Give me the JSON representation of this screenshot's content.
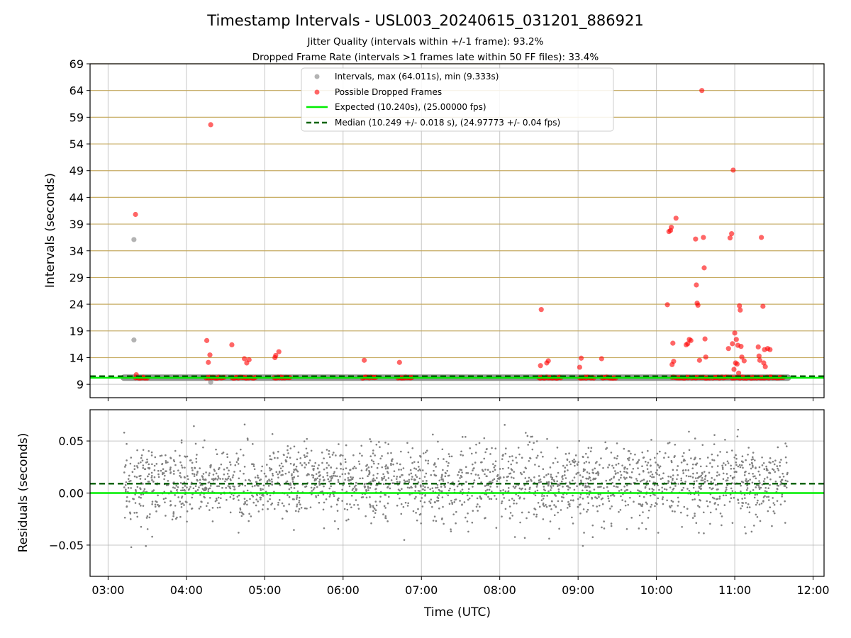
{
  "title": "Timestamp Intervals - USL003_20240615_031201_886921",
  "subtitle_1": "Jitter Quality (intervals within +/-1 frame): 93.2%",
  "subtitle_2": "Dropped Frame Rate (intervals >1 frames late within 50 FF files): 33.4%",
  "colors": {
    "interval": "#808080",
    "dropped": "#ff0000",
    "expected": "#00ee00",
    "median": "#006400",
    "hline": "#c8a64b",
    "grid": "#b0b0b0"
  },
  "chart_data": [
    {
      "type": "scatter",
      "name": "intervals",
      "ylabel": "Intervals (seconds)",
      "y_ticks": [
        "9",
        "14",
        "19",
        "24",
        "29",
        "34",
        "39",
        "44",
        "49",
        "54",
        "59",
        "64",
        "69"
      ],
      "ylim": [
        6.5,
        69
      ],
      "x_ticks": [
        "03:00",
        "04:00",
        "05:00",
        "06:00",
        "07:00",
        "08:00",
        "09:00",
        "10:00",
        "11:00",
        "12:00"
      ],
      "xlim_hours": [
        2.77,
        12.14
      ],
      "grid": true,
      "legend_position": "top-center",
      "series": [
        {
          "name": "Intervals, max (64.011s), min (9.333s)",
          "style": "scatter",
          "points": [
            [
              3.33,
              36.1
            ],
            [
              3.33,
              17.3
            ],
            [
              4.31,
              9.4
            ]
          ],
          "band": {
            "x_start": 3.2,
            "x_end": 11.68,
            "y": 10.25
          }
        },
        {
          "name": "Possible Dropped Frames",
          "style": "scatter",
          "clusters": [
            [
              3.35,
              3.5
            ],
            [
              4.25,
              4.48
            ],
            [
              4.58,
              4.88
            ],
            [
              5.12,
              5.32
            ],
            [
              6.25,
              6.42
            ],
            [
              6.7,
              6.88
            ],
            [
              8.5,
              8.78
            ],
            [
              9.02,
              9.2
            ],
            [
              9.3,
              9.48
            ],
            [
              10.2,
              10.42
            ],
            [
              10.45,
              10.52
            ],
            [
              10.55,
              10.68
            ],
            [
              10.72,
              10.92
            ],
            [
              10.95,
              11.28
            ],
            [
              11.3,
              11.62
            ]
          ],
          "points": [
            [
              3.35,
              40.8
            ],
            [
              3.36,
              10.8
            ],
            [
              4.26,
              17.2
            ],
            [
              4.28,
              13.1
            ],
            [
              4.3,
              14.5
            ],
            [
              4.31,
              57.6
            ],
            [
              4.58,
              16.4
            ],
            [
              4.74,
              13.8
            ],
            [
              4.77,
              13.0
            ],
            [
              4.8,
              13.6
            ],
            [
              5.13,
              14.0
            ],
            [
              5.14,
              14.4
            ],
            [
              5.18,
              15.1
            ],
            [
              6.27,
              13.5
            ],
            [
              6.72,
              13.1
            ],
            [
              8.52,
              12.5
            ],
            [
              8.53,
              23.0
            ],
            [
              8.6,
              13.0
            ],
            [
              8.62,
              13.4
            ],
            [
              9.02,
              12.2
            ],
            [
              9.04,
              13.9
            ],
            [
              9.3,
              13.8
            ],
            [
              10.14,
              23.9
            ],
            [
              10.16,
              37.6
            ],
            [
              10.18,
              37.8
            ],
            [
              10.19,
              38.4
            ],
            [
              10.2,
              12.7
            ],
            [
              10.21,
              16.7
            ],
            [
              10.22,
              13.3
            ],
            [
              10.25,
              40.1
            ],
            [
              10.38,
              16.4
            ],
            [
              10.4,
              16.6
            ],
            [
              10.42,
              17.4
            ],
            [
              10.44,
              17.2
            ],
            [
              10.5,
              36.2
            ],
            [
              10.51,
              27.6
            ],
            [
              10.52,
              24.2
            ],
            [
              10.53,
              23.8
            ],
            [
              10.55,
              13.5
            ],
            [
              10.58,
              64.0
            ],
            [
              10.6,
              36.5
            ],
            [
              10.61,
              30.8
            ],
            [
              10.62,
              17.5
            ],
            [
              10.63,
              14.1
            ],
            [
              10.92,
              15.7
            ],
            [
              10.94,
              36.4
            ],
            [
              10.96,
              37.2
            ],
            [
              10.97,
              16.6
            ],
            [
              10.98,
              49.1
            ],
            [
              10.99,
              11.8
            ],
            [
              11.0,
              18.6
            ],
            [
              11.01,
              13.0
            ],
            [
              11.02,
              17.4
            ],
            [
              11.03,
              12.8
            ],
            [
              11.04,
              16.3
            ],
            [
              11.05,
              11.1
            ],
            [
              11.06,
              23.7
            ],
            [
              11.07,
              22.9
            ],
            [
              11.08,
              16.1
            ],
            [
              11.09,
              14.1
            ],
            [
              11.12,
              13.4
            ],
            [
              11.3,
              16.0
            ],
            [
              11.31,
              14.3
            ],
            [
              11.32,
              13.5
            ],
            [
              11.34,
              36.5
            ],
            [
              11.36,
              23.6
            ],
            [
              11.37,
              13.0
            ],
            [
              11.38,
              15.5
            ],
            [
              11.39,
              12.3
            ],
            [
              11.42,
              15.7
            ],
            [
              11.45,
              15.5
            ]
          ]
        },
        {
          "name": "Expected (10.240s), (25.00000 fps)",
          "style": "line",
          "y": 10.24
        },
        {
          "name": "Median (10.249 +/- 0.018 s), (24.97773 +/- 0.04 fps)",
          "style": "dashed",
          "y": 10.249
        }
      ]
    },
    {
      "type": "scatter",
      "name": "residuals",
      "ylabel": "Residuals (seconds)",
      "xlabel": "Time (UTC)",
      "y_ticks": [
        "0.05",
        "0.00",
        "−0.05"
      ],
      "ylim": [
        -0.08,
        0.08
      ],
      "x_ticks": [
        "03:00",
        "04:00",
        "05:00",
        "06:00",
        "07:00",
        "08:00",
        "09:00",
        "10:00",
        "11:00",
        "12:00"
      ],
      "xlim_hours": [
        2.77,
        12.14
      ],
      "grid": true,
      "x_range": [
        3.2,
        11.68
      ],
      "residual_std": 0.018,
      "residual_center": 0.009,
      "expected_line_y": 0.0,
      "median_line_y": 0.009
    }
  ],
  "legend": {
    "intervals_label": "Intervals, max (64.011s), min (9.333s)",
    "dropped_label": "Possible Dropped Frames",
    "expected_label": "Expected (10.240s), (25.00000 fps)",
    "median_label": "Median (10.249 +/- 0.018 s), (24.97773 +/- 0.04 fps)"
  }
}
